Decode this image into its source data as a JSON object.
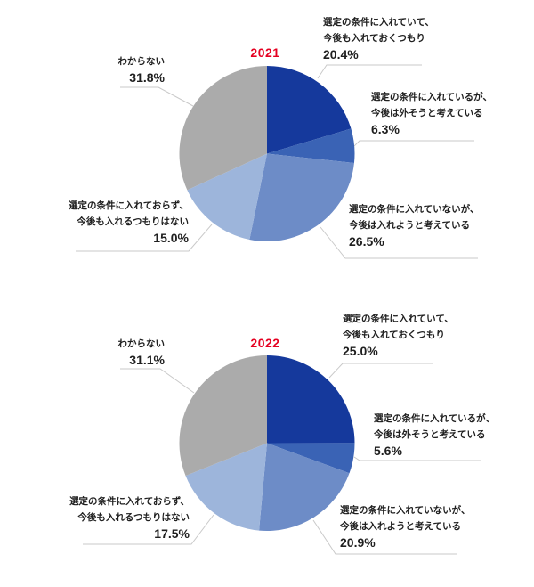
{
  "chart_data": [
    {
      "type": "pie",
      "title": "2021",
      "title_color": "#e50021",
      "start_angle_deg": 0,
      "direction": "clockwise",
      "slices": [
        {
          "line1": "選定の条件に入れていて、",
          "line2": "今後も入れておくつもり",
          "pct": "20.4%",
          "value": 20.4,
          "color": "#15399c"
        },
        {
          "line1": "選定の条件に入れているが、",
          "line2": "今後は外そうと考えている",
          "pct": "6.3%",
          "value": 6.3,
          "color": "#3a63b5"
        },
        {
          "line1": "選定の条件に入れていないが、",
          "line2": "今後は入れようと考えている",
          "pct": "26.5%",
          "value": 26.5,
          "color": "#6d8cc7"
        },
        {
          "line1": "選定の条件に入れておらず、",
          "line2": "今後も入れるつもりはない",
          "pct": "15.0%",
          "value": 15.0,
          "color": "#9db5db"
        },
        {
          "line1": "わからない",
          "line2": "",
          "pct": "31.8%",
          "value": 31.8,
          "color": "#ababab"
        }
      ]
    },
    {
      "type": "pie",
      "title": "2022",
      "title_color": "#e50021",
      "start_angle_deg": 0,
      "direction": "clockwise",
      "slices": [
        {
          "line1": "選定の条件に入れていて、",
          "line2": "今後も入れておくつもり",
          "pct": "25.0%",
          "value": 25.0,
          "color": "#15399c"
        },
        {
          "line1": "選定の条件に入れているが、",
          "line2": "今後は外そうと考えている",
          "pct": "5.6%",
          "value": 5.6,
          "color": "#3a63b5"
        },
        {
          "line1": "選定の条件に入れていないが、",
          "line2": "今後は入れようと考えている",
          "pct": "20.9%",
          "value": 20.9,
          "color": "#6d8cc7"
        },
        {
          "line1": "選定の条件に入れておらず、",
          "line2": "今後も入れるつもりはない",
          "pct": "17.5%",
          "value": 17.5,
          "color": "#9db5db"
        },
        {
          "line1": "わからない",
          "line2": "",
          "pct": "31.1%",
          "value": 31.1,
          "color": "#ababab"
        }
      ]
    }
  ]
}
